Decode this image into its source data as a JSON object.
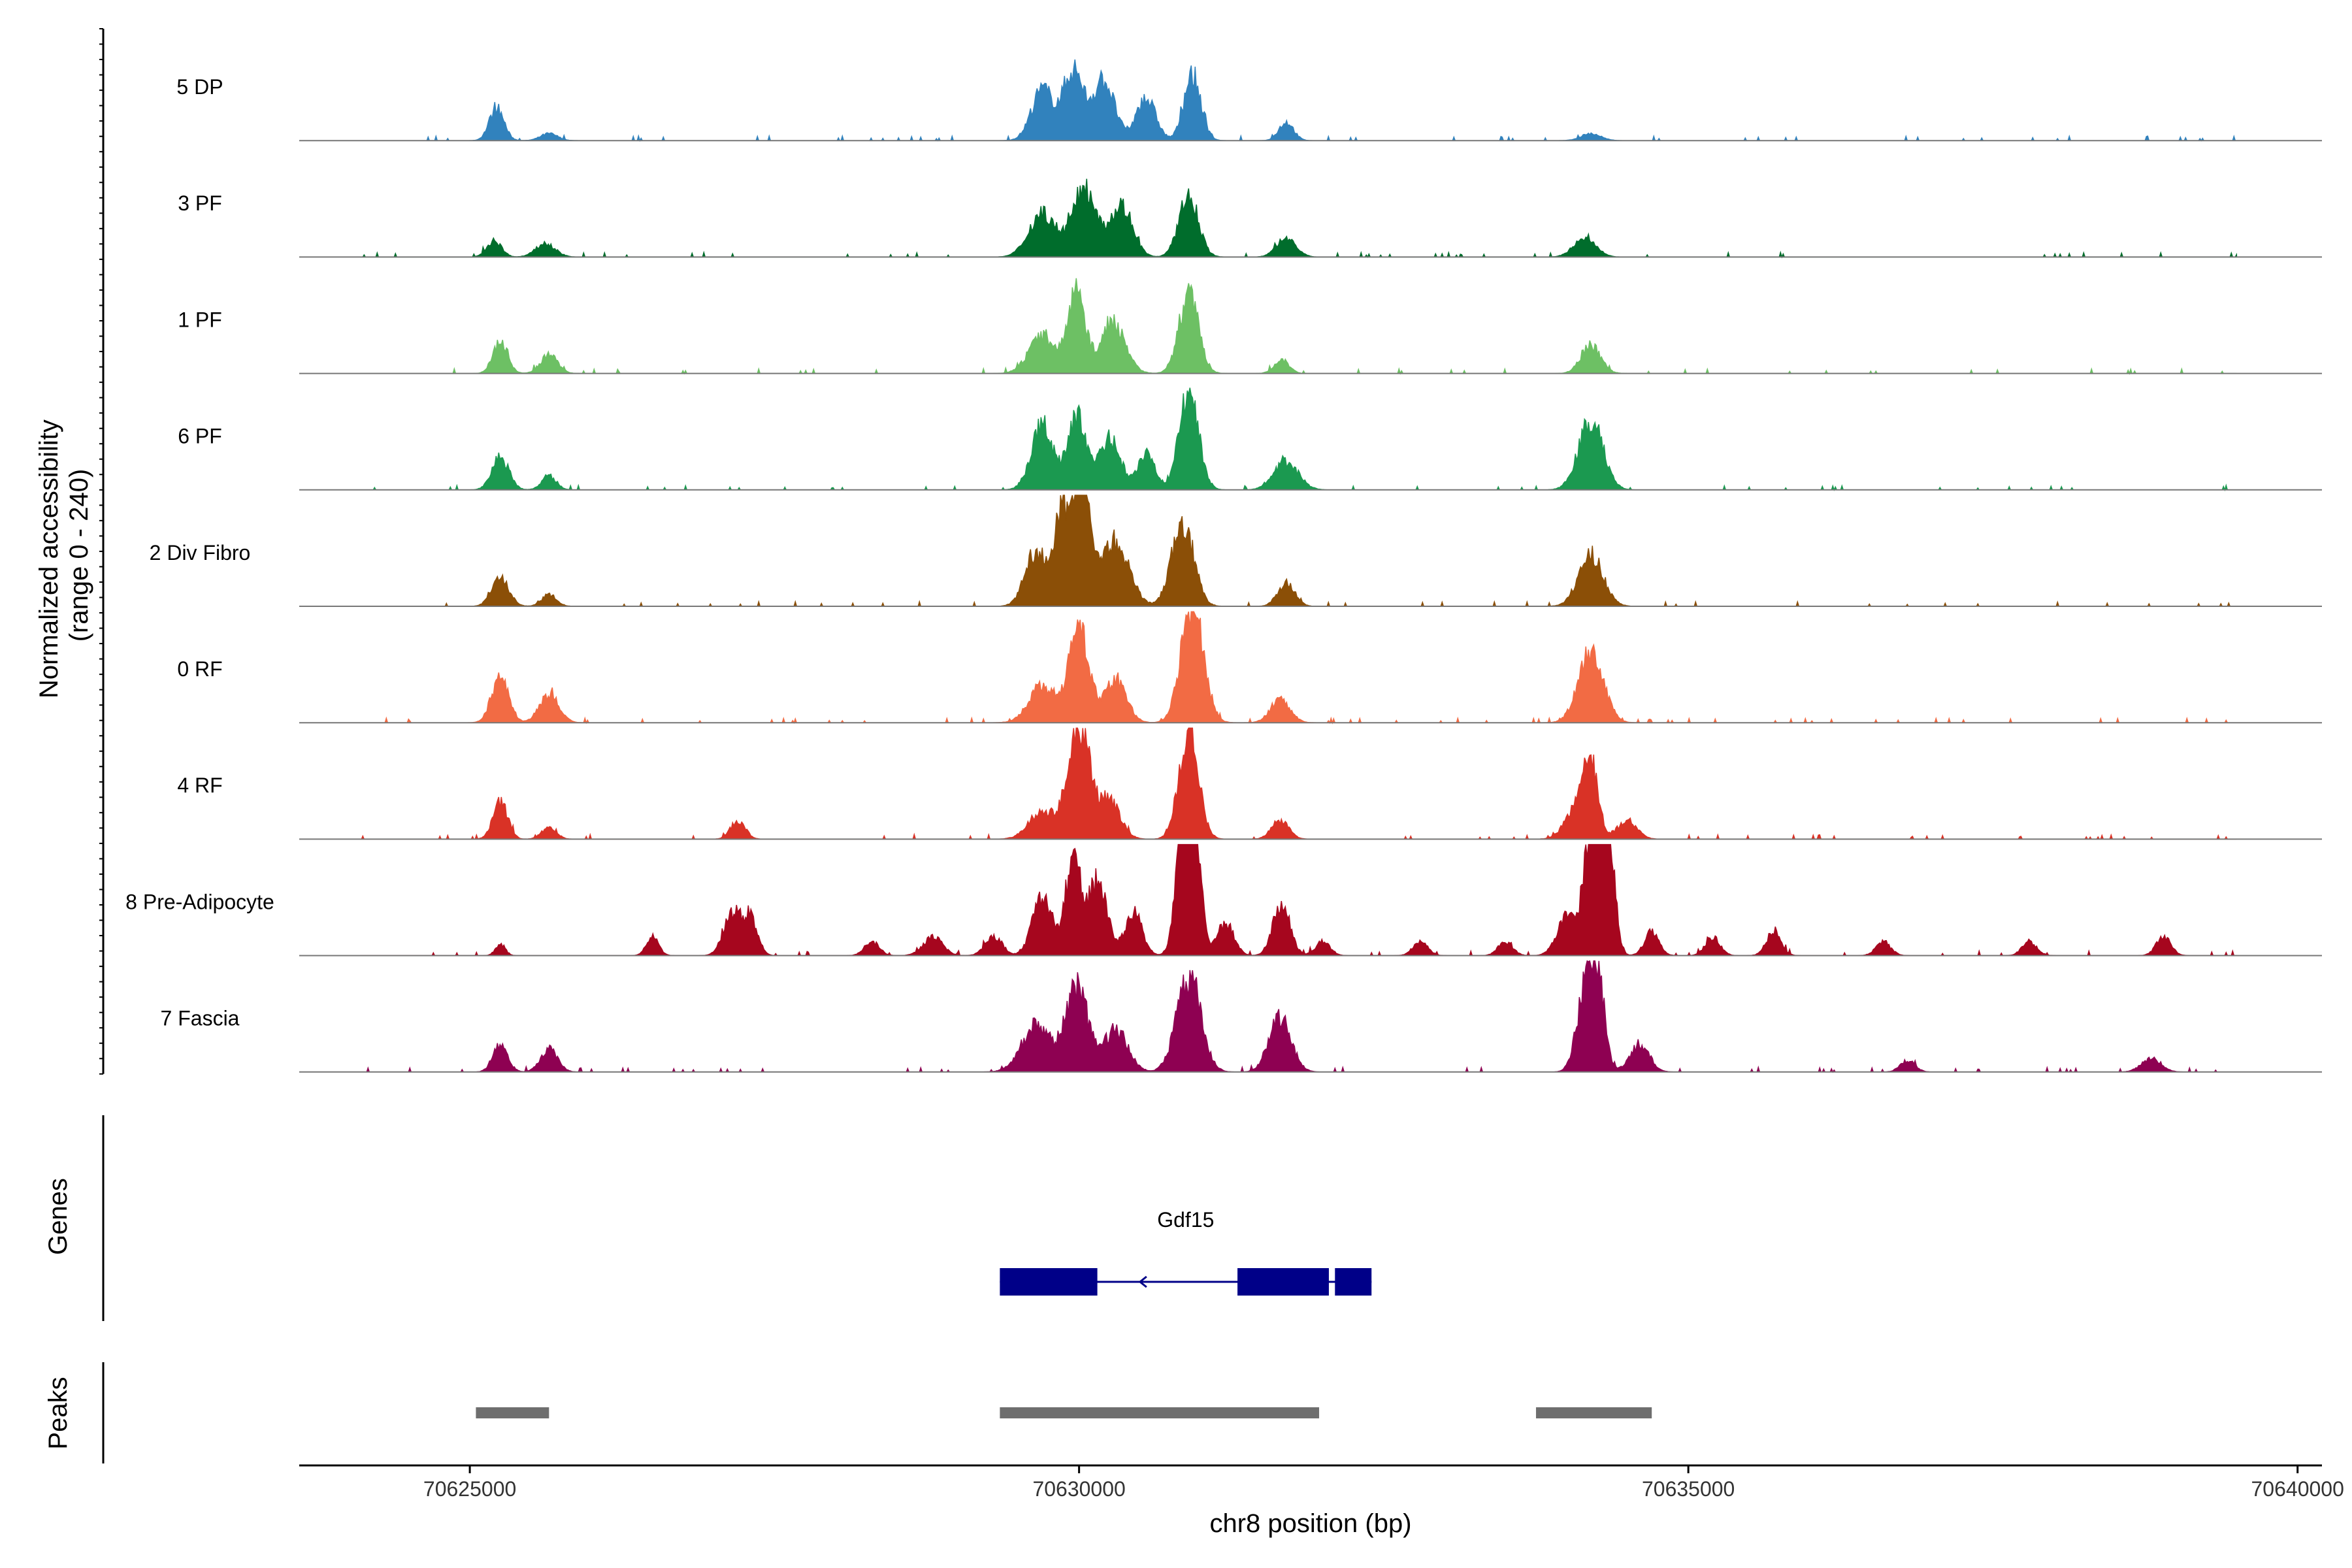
{
  "chart_data": {
    "type": "area",
    "title": "",
    "ylabel": "Normalized accessibility\n(range 0 - 240)",
    "xlabel": "chr8 position (bp)",
    "xlim": [
      70623600,
      70640200
    ],
    "ylim": [
      0,
      240
    ],
    "xticks": [
      70625000,
      70630000,
      70635000,
      70640000
    ],
    "xtick_labels": [
      "70625000",
      "70630000",
      "70635000",
      "70640000"
    ],
    "track_extent": [
      70625000,
      70639500
    ],
    "series": [
      {
        "name": "5 DP",
        "color": "#3182BD",
        "peaks": [
          [
            70625220,
            70,
            60
          ],
          [
            70625650,
            15,
            70
          ],
          [
            70629700,
            110,
            90
          ],
          [
            70629950,
            150,
            80
          ],
          [
            70630200,
            130,
            90
          ],
          [
            70630550,
            90,
            80
          ],
          [
            70630930,
            140,
            70
          ],
          [
            70631700,
            40,
            60
          ],
          [
            70634200,
            15,
            80
          ]
        ]
      },
      {
        "name": "3 PF",
        "color": "#006D2C",
        "peaks": [
          [
            70625200,
            35,
            60
          ],
          [
            70625620,
            30,
            80
          ],
          [
            70629700,
            95,
            110
          ],
          [
            70630050,
            150,
            100
          ],
          [
            70630350,
            110,
            90
          ],
          [
            70630900,
            130,
            80
          ],
          [
            70631700,
            40,
            80
          ],
          [
            70634150,
            40,
            90
          ]
        ]
      },
      {
        "name": "1 PF",
        "color": "#6DC064",
        "peaks": [
          [
            70625250,
            70,
            60
          ],
          [
            70625650,
            40,
            70
          ],
          [
            70629700,
            80,
            110
          ],
          [
            70629980,
            175,
            70
          ],
          [
            70630280,
            110,
            100
          ],
          [
            70630900,
            170,
            80
          ],
          [
            70631660,
            30,
            60
          ],
          [
            70634200,
            60,
            80
          ]
        ]
      },
      {
        "name": "6 PF",
        "color": "#1B9950",
        "peaks": [
          [
            70625250,
            70,
            70
          ],
          [
            70625650,
            30,
            60
          ],
          [
            70629700,
            140,
            90
          ],
          [
            70629980,
            165,
            70
          ],
          [
            70630250,
            110,
            90
          ],
          [
            70630550,
            80,
            70
          ],
          [
            70630900,
            210,
            80
          ],
          [
            70631700,
            60,
            100
          ],
          [
            70634200,
            150,
            100
          ]
        ]
      },
      {
        "name": "2 Div Fibro",
        "color": "#8B4F07",
        "peaks": [
          [
            70625250,
            60,
            70
          ],
          [
            70625650,
            25,
            60
          ],
          [
            70629650,
            120,
            90
          ],
          [
            70629860,
            190,
            60
          ],
          [
            70630020,
            300,
            70
          ],
          [
            70630300,
            140,
            110
          ],
          [
            70630850,
            180,
            90
          ],
          [
            70631700,
            50,
            70
          ],
          [
            70634200,
            110,
            100
          ]
        ]
      },
      {
        "name": "0 RF",
        "color": "#F26B44",
        "peaks": [
          [
            70625250,
            100,
            70
          ],
          [
            70625650,
            60,
            80
          ],
          [
            70629700,
            80,
            110
          ],
          [
            70630000,
            210,
            80
          ],
          [
            70630300,
            90,
            90
          ],
          [
            70630930,
            260,
            90
          ],
          [
            70631650,
            50,
            80
          ],
          [
            70634200,
            160,
            100
          ]
        ]
      },
      {
        "name": "4 RF",
        "color": "#D93226",
        "peaks": [
          [
            70625250,
            80,
            60
          ],
          [
            70625650,
            25,
            60
          ],
          [
            70627200,
            40,
            60
          ],
          [
            70629700,
            60,
            110
          ],
          [
            70630000,
            240,
            90
          ],
          [
            70630250,
            80,
            90
          ],
          [
            70630900,
            230,
            80
          ],
          [
            70631650,
            40,
            70
          ],
          [
            70634100,
            70,
            100
          ],
          [
            70634200,
            130,
            60
          ],
          [
            70634500,
            40,
            80
          ]
        ]
      },
      {
        "name": "8 Pre-Adipocyte",
        "color": "#A6061E",
        "peaks": [
          [
            70625250,
            25,
            40
          ],
          [
            70626500,
            40,
            50
          ],
          [
            70627150,
            90,
            70
          ],
          [
            70627300,
            80,
            60
          ],
          [
            70628300,
            30,
            60
          ],
          [
            70628800,
            40,
            80
          ],
          [
            70629300,
            40,
            70
          ],
          [
            70629700,
            130,
            80
          ],
          [
            70629950,
            210,
            60
          ],
          [
            70630150,
            160,
            80
          ],
          [
            70630450,
            90,
            70
          ],
          [
            70630850,
            220,
            60
          ],
          [
            70630920,
            400,
            60
          ],
          [
            70631200,
            70,
            70
          ],
          [
            70631660,
            110,
            70
          ],
          [
            70632000,
            30,
            60
          ],
          [
            70632800,
            30,
            60
          ],
          [
            70633500,
            30,
            60
          ],
          [
            70634000,
            80,
            80
          ],
          [
            70634220,
            300,
            70
          ],
          [
            70634350,
            230,
            50
          ],
          [
            70634700,
            50,
            60
          ],
          [
            70635200,
            40,
            60
          ],
          [
            70635700,
            50,
            60
          ],
          [
            70636600,
            30,
            60
          ],
          [
            70637800,
            30,
            60
          ],
          [
            70638900,
            40,
            60
          ]
        ]
      },
      {
        "name": "7 Fascia",
        "color": "#8E0152",
        "peaks": [
          [
            70625250,
            60,
            60
          ],
          [
            70625650,
            50,
            70
          ],
          [
            70629650,
            100,
            120
          ],
          [
            70629980,
            180,
            90
          ],
          [
            70630300,
            90,
            100
          ],
          [
            70630900,
            200,
            100
          ],
          [
            70631650,
            120,
            90
          ],
          [
            70634150,
            160,
            70
          ],
          [
            70634250,
            200,
            60
          ],
          [
            70634600,
            60,
            80
          ],
          [
            70636800,
            25,
            60
          ],
          [
            70638800,
            30,
            80
          ]
        ]
      }
    ],
    "genes": [
      {
        "name": "Gdf15",
        "color": "#000088",
        "strand": "-",
        "start": 70629350,
        "end": 70632400,
        "exons": [
          [
            70629350,
            70630150
          ],
          [
            70631300,
            70632050
          ],
          [
            70632100,
            70632400
          ]
        ]
      }
    ],
    "peaks": [
      [
        70625050,
        70625650
      ],
      [
        70629350,
        70631970
      ],
      [
        70633750,
        70634700
      ]
    ],
    "track_labels": {
      "genes": "Genes",
      "peaks": "Peaks"
    }
  }
}
